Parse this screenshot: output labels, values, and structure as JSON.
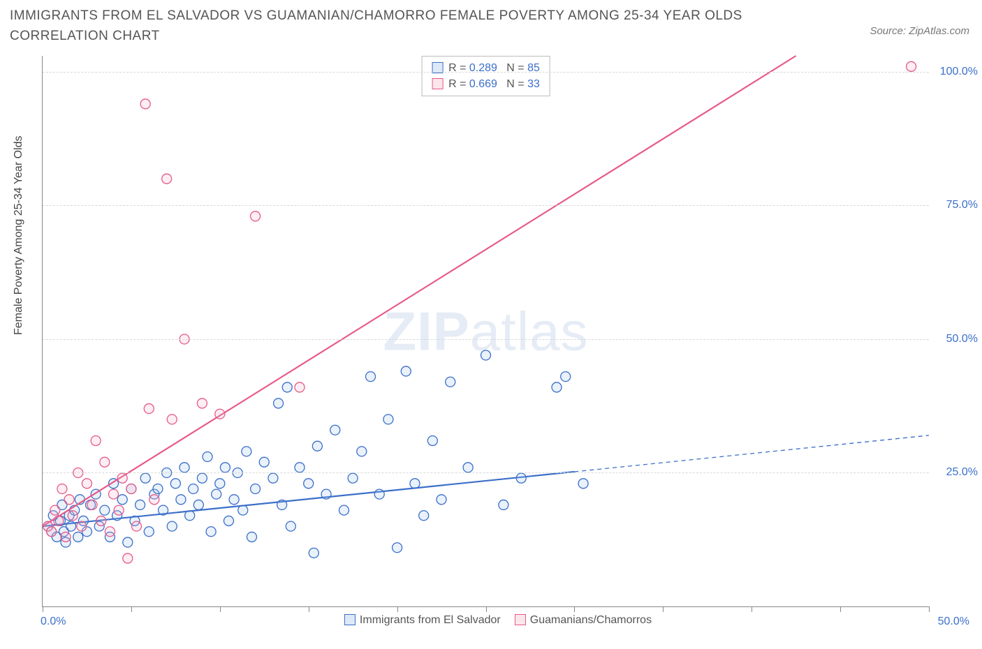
{
  "title": "IMMIGRANTS FROM EL SALVADOR VS GUAMANIAN/CHAMORRO FEMALE POVERTY AMONG 25-34 YEAR OLDS CORRELATION CHART",
  "source_label": "Source: ZipAtlas.com",
  "y_axis_label": "Female Poverty Among 25-34 Year Olds",
  "watermark_a": "ZIP",
  "watermark_b": "atlas",
  "chart": {
    "type": "scatter",
    "background_color": "#ffffff",
    "axis_color": "#888888",
    "grid_color": "#d8d8d8",
    "grid_dash": "4,4",
    "label_color": "#3b6fc9",
    "text_color": "#555555",
    "title_fontsize": 19,
    "label_fontsize": 16,
    "xlim": [
      0,
      50
    ],
    "ylim": [
      0,
      103
    ],
    "xtick_positions": [
      0,
      5,
      10,
      15,
      20,
      25,
      30,
      35,
      40,
      45,
      50
    ],
    "xtick_labels_shown": {
      "0": "0.0%",
      "50": "50.0%"
    },
    "ytick_positions": [
      25,
      50,
      75,
      100
    ],
    "ytick_labels": [
      "25.0%",
      "50.0%",
      "75.0%",
      "100.0%"
    ],
    "marker_radius": 7,
    "marker_stroke_width": 1.3,
    "marker_fill_opacity": 0.22,
    "line_width": 2.2,
    "series": [
      {
        "key": "s1",
        "name": "Immigrants from El Salvador",
        "color_stroke": "#3b6fc9",
        "color_fill": "#9cbde8",
        "R": "0.289",
        "N": "85",
        "trend": {
          "x1": 0,
          "y1": 15,
          "x2": 50,
          "y2": 32,
          "solid_until_x": 30
        },
        "points": [
          [
            0.3,
            15
          ],
          [
            0.5,
            14
          ],
          [
            0.6,
            17
          ],
          [
            0.8,
            13
          ],
          [
            1.0,
            16
          ],
          [
            1.1,
            19
          ],
          [
            1.2,
            14
          ],
          [
            1.3,
            12
          ],
          [
            1.5,
            17
          ],
          [
            1.6,
            15
          ],
          [
            1.8,
            18
          ],
          [
            2.0,
            13
          ],
          [
            2.1,
            20
          ],
          [
            2.3,
            16
          ],
          [
            2.5,
            14
          ],
          [
            2.7,
            19
          ],
          [
            3.0,
            21
          ],
          [
            3.2,
            15
          ],
          [
            3.5,
            18
          ],
          [
            3.8,
            13
          ],
          [
            4.0,
            23
          ],
          [
            4.2,
            17
          ],
          [
            4.5,
            20
          ],
          [
            4.8,
            12
          ],
          [
            5.0,
            22
          ],
          [
            5.2,
            16
          ],
          [
            5.5,
            19
          ],
          [
            5.8,
            24
          ],
          [
            6.0,
            14
          ],
          [
            6.3,
            21
          ],
          [
            6.5,
            22
          ],
          [
            6.8,
            18
          ],
          [
            7.0,
            25
          ],
          [
            7.3,
            15
          ],
          [
            7.5,
            23
          ],
          [
            7.8,
            20
          ],
          [
            8.0,
            26
          ],
          [
            8.3,
            17
          ],
          [
            8.5,
            22
          ],
          [
            8.8,
            19
          ],
          [
            9.0,
            24
          ],
          [
            9.3,
            28
          ],
          [
            9.5,
            14
          ],
          [
            9.8,
            21
          ],
          [
            10.0,
            23
          ],
          [
            10.3,
            26
          ],
          [
            10.5,
            16
          ],
          [
            10.8,
            20
          ],
          [
            11.0,
            25
          ],
          [
            11.3,
            18
          ],
          [
            11.5,
            29
          ],
          [
            11.8,
            13
          ],
          [
            12.0,
            22
          ],
          [
            12.5,
            27
          ],
          [
            13.0,
            24
          ],
          [
            13.3,
            38
          ],
          [
            13.5,
            19
          ],
          [
            13.8,
            41
          ],
          [
            14.0,
            15
          ],
          [
            14.5,
            26
          ],
          [
            15.0,
            23
          ],
          [
            15.3,
            10
          ],
          [
            15.5,
            30
          ],
          [
            16.0,
            21
          ],
          [
            16.5,
            33
          ],
          [
            17.0,
            18
          ],
          [
            17.5,
            24
          ],
          [
            18.0,
            29
          ],
          [
            18.5,
            43
          ],
          [
            19.0,
            21
          ],
          [
            19.5,
            35
          ],
          [
            20.0,
            11
          ],
          [
            20.5,
            44
          ],
          [
            21.0,
            23
          ],
          [
            21.5,
            17
          ],
          [
            22.0,
            31
          ],
          [
            22.5,
            20
          ],
          [
            23.0,
            42
          ],
          [
            24.0,
            26
          ],
          [
            25.0,
            47
          ],
          [
            26.0,
            19
          ],
          [
            27.0,
            24
          ],
          [
            29.0,
            41
          ],
          [
            29.5,
            43
          ],
          [
            30.5,
            23
          ]
        ]
      },
      {
        "key": "s2",
        "name": "Guamanians/Chamorros",
        "color_stroke": "#e65a88",
        "color_fill": "#f4b3c7",
        "R": "0.669",
        "N": "33",
        "trend": {
          "x1": 0,
          "y1": 15,
          "x2": 42.5,
          "y2": 103,
          "solid_until_x": 42.5
        },
        "points": [
          [
            0.3,
            15
          ],
          [
            0.5,
            14
          ],
          [
            0.7,
            18
          ],
          [
            0.9,
            16
          ],
          [
            1.1,
            22
          ],
          [
            1.3,
            13
          ],
          [
            1.5,
            20
          ],
          [
            1.7,
            17
          ],
          [
            2.0,
            25
          ],
          [
            2.2,
            15
          ],
          [
            2.5,
            23
          ],
          [
            2.8,
            19
          ],
          [
            3.0,
            31
          ],
          [
            3.3,
            16
          ],
          [
            3.5,
            27
          ],
          [
            3.8,
            14
          ],
          [
            4.0,
            21
          ],
          [
            4.3,
            18
          ],
          [
            4.5,
            24
          ],
          [
            4.8,
            9
          ],
          [
            5.0,
            22
          ],
          [
            5.3,
            15
          ],
          [
            5.8,
            94
          ],
          [
            6.0,
            37
          ],
          [
            6.3,
            20
          ],
          [
            7.0,
            80
          ],
          [
            7.3,
            35
          ],
          [
            8.0,
            50
          ],
          [
            9.0,
            38
          ],
          [
            10.0,
            36
          ],
          [
            12.0,
            73
          ],
          [
            14.5,
            41
          ],
          [
            49.0,
            101
          ]
        ]
      }
    ]
  },
  "top_legend": {
    "r_label": "R =",
    "n_label": "N ="
  }
}
